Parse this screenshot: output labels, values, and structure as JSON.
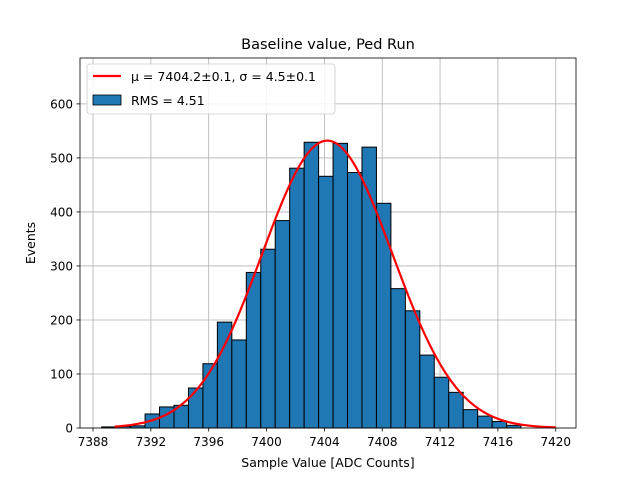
{
  "chart_data": {
    "type": "bar",
    "title": "Baseline value, Ped Run",
    "xlabel": "Sample Value [ADC Counts]",
    "ylabel": "Events",
    "xlim": [
      7387.1,
      7421.4
    ],
    "ylim": [
      0,
      685
    ],
    "xticks": [
      7388,
      7392,
      7396,
      7400,
      7404,
      7408,
      7412,
      7416,
      7420
    ],
    "yticks": [
      0,
      100,
      200,
      300,
      400,
      500,
      600
    ],
    "grid": true,
    "legend_position": "top-left",
    "legend": [
      {
        "label": "μ = 7404.2±0.1, σ = 4.5±0.1",
        "kind": "line",
        "color": "#ff0000"
      },
      {
        "label": "RMS = 4.51",
        "kind": "patch",
        "color": "#1f77b4"
      }
    ],
    "bin_width": 1,
    "bins": [
      {
        "x_left": 7388.6,
        "value": 2
      },
      {
        "x_left": 7389.6,
        "value": 3
      },
      {
        "x_left": 7390.6,
        "value": 4
      },
      {
        "x_left": 7391.6,
        "value": 26
      },
      {
        "x_left": 7392.6,
        "value": 39
      },
      {
        "x_left": 7393.6,
        "value": 42
      },
      {
        "x_left": 7394.6,
        "value": 74
      },
      {
        "x_left": 7395.6,
        "value": 119
      },
      {
        "x_left": 7396.6,
        "value": 196
      },
      {
        "x_left": 7397.6,
        "value": 163
      },
      {
        "x_left": 7398.6,
        "value": 288
      },
      {
        "x_left": 7399.6,
        "value": 331
      },
      {
        "x_left": 7400.6,
        "value": 384
      },
      {
        "x_left": 7401.6,
        "value": 481
      },
      {
        "x_left": 7402.6,
        "value": 529
      },
      {
        "x_left": 7403.6,
        "value": 466
      },
      {
        "x_left": 7404.6,
        "value": 527
      },
      {
        "x_left": 7405.6,
        "value": 473
      },
      {
        "x_left": 7406.6,
        "value": 520
      },
      {
        "x_left": 7407.6,
        "value": 416
      },
      {
        "x_left": 7408.6,
        "value": 258
      },
      {
        "x_left": 7409.6,
        "value": 217
      },
      {
        "x_left": 7410.6,
        "value": 135
      },
      {
        "x_left": 7411.6,
        "value": 94
      },
      {
        "x_left": 7412.6,
        "value": 66
      },
      {
        "x_left": 7413.6,
        "value": 34
      },
      {
        "x_left": 7414.6,
        "value": 22
      },
      {
        "x_left": 7415.6,
        "value": 12
      },
      {
        "x_left": 7416.6,
        "value": 5
      }
    ],
    "fit": {
      "type": "gaussian",
      "mu": 7404.2,
      "sigma": 4.5,
      "amplitude": 532,
      "x_range": [
        7389.5,
        7420
      ],
      "color": "#ff0000"
    },
    "bar_color": "#1f77b4",
    "bar_edge_color": "#000000"
  }
}
